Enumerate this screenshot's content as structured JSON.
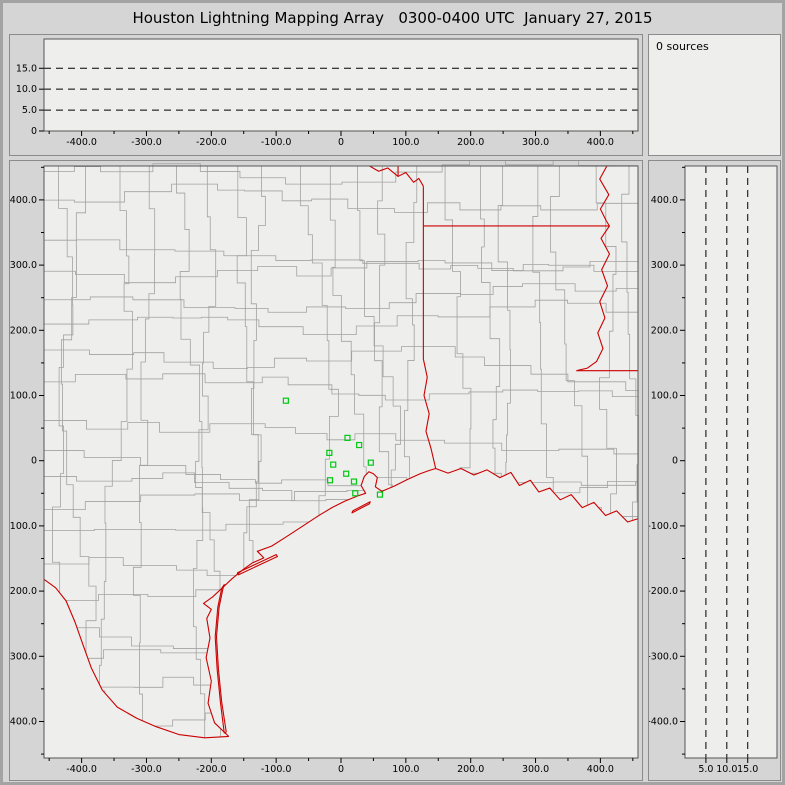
{
  "title": "Houston Lightning Mapping Array   0300-0400 UTC  January 27, 2015",
  "sources_label": "0 sources",
  "colors": {
    "background": "#d5d5d5",
    "plot_bg": "#eeeeec",
    "panel_border": "#8b8b8b",
    "frame": "#555555",
    "county": "#a2a2a2",
    "boundary": "#cb0000",
    "station": "#00c814",
    "gridline": "#000000"
  },
  "axes": {
    "ew": {
      "range": [
        -458,
        458
      ],
      "ticks": [
        -400,
        -300,
        -200,
        -100,
        0,
        100,
        200,
        300,
        400
      ],
      "labels": [
        "-400.0",
        "-300.0",
        "-200.0",
        "-100.0",
        "0",
        "100.0",
        "200.0",
        "300.0",
        "400.0"
      ]
    },
    "ns": {
      "range": [
        -456,
        452
      ],
      "ticks": [
        400,
        300,
        200,
        100,
        0,
        -100,
        -200,
        -300,
        -400
      ],
      "labels": [
        "400.0",
        "300.0",
        "200.0",
        "100.0",
        "0",
        "-100.0",
        "-200.0",
        "-300.0",
        "-400.0"
      ]
    },
    "alt_top": {
      "range": [
        0,
        22
      ],
      "ticks": [
        0,
        5,
        10,
        15
      ],
      "labels": [
        "0",
        "5.0",
        "10.0",
        "15.0"
      ],
      "gridlines": [
        5,
        10,
        15
      ]
    },
    "alt_right": {
      "range": [
        0,
        22
      ],
      "ticks": [
        5,
        10,
        15
      ],
      "labels": [
        "5.0",
        "10.0",
        "15.0"
      ],
      "gridlines": [
        5,
        10,
        15
      ]
    }
  },
  "map": {
    "stations_km": [
      [
        -85,
        92
      ],
      [
        10,
        35
      ],
      [
        28,
        24
      ],
      [
        -18,
        12
      ],
      [
        -12,
        -6
      ],
      [
        8,
        -20
      ],
      [
        -17,
        -30
      ],
      [
        20,
        -32
      ],
      [
        46,
        -3
      ],
      [
        22,
        -50
      ],
      [
        60,
        -52
      ]
    ],
    "boundaries_km": {
      "red_river": [
        [
          44,
          452
        ],
        [
          58,
          444
        ],
        [
          72,
          449
        ],
        [
          88,
          436
        ],
        [
          100,
          442
        ],
        [
          112,
          427
        ],
        [
          120,
          433
        ],
        [
          127,
          421
        ]
      ],
      "ok_ar": [
        [
          88,
          452
        ],
        [
          88,
          437
        ]
      ],
      "tx_ar": [
        [
          127,
          421
        ],
        [
          127,
          360
        ]
      ],
      "ar_la": [
        [
          127,
          360
        ],
        [
          414,
          360
        ]
      ],
      "tx_la_sabine": [
        [
          127,
          360
        ],
        [
          127,
          156
        ],
        [
          133,
          128
        ],
        [
          128,
          100
        ],
        [
          136,
          72
        ],
        [
          131,
          45
        ],
        [
          139,
          18
        ],
        [
          146,
          -12
        ]
      ],
      "mississippi": [
        [
          410,
          452
        ],
        [
          399,
          432
        ],
        [
          413,
          408
        ],
        [
          400,
          386
        ],
        [
          409,
          368
        ],
        [
          414,
          360
        ],
        [
          401,
          341
        ],
        [
          414,
          317
        ],
        [
          402,
          293
        ],
        [
          411,
          268
        ],
        [
          399,
          244
        ],
        [
          407,
          219
        ],
        [
          396,
          196
        ],
        [
          404,
          172
        ],
        [
          394,
          152
        ],
        [
          380,
          142
        ],
        [
          367,
          139
        ],
        [
          363,
          138
        ]
      ],
      "la_ms": [
        [
          363,
          138
        ],
        [
          458,
          138
        ]
      ],
      "gulf_coast": [
        [
          -173,
          -423
        ],
        [
          -195,
          -402
        ],
        [
          -205,
          -372
        ],
        [
          -200,
          -338
        ],
        [
          -208,
          -302
        ],
        [
          -202,
          -272
        ],
        [
          -207,
          -242
        ],
        [
          -200,
          -228
        ],
        [
          -212,
          -219
        ],
        [
          -198,
          -209
        ],
        [
          -184,
          -196
        ],
        [
          -168,
          -181
        ],
        [
          -151,
          -167
        ],
        [
          -137,
          -157
        ],
        [
          -119,
          -149
        ],
        [
          -129,
          -139
        ],
        [
          -107,
          -131
        ],
        [
          -91,
          -121
        ],
        [
          -74,
          -110
        ],
        [
          -54,
          -97
        ],
        [
          -34,
          -84
        ],
        [
          -14,
          -72
        ],
        [
          6,
          -62
        ],
        [
          26,
          -54
        ],
        [
          38,
          -50
        ],
        [
          31,
          -38
        ],
        [
          36,
          -24
        ],
        [
          43,
          -17
        ],
        [
          50,
          -20
        ],
        [
          56,
          -26
        ],
        [
          53,
          -40
        ],
        [
          63,
          -47
        ],
        [
          82,
          -39
        ],
        [
          102,
          -29
        ],
        [
          122,
          -20
        ],
        [
          136,
          -15
        ],
        [
          146,
          -12
        ],
        [
          165,
          -19
        ],
        [
          185,
          -12
        ],
        [
          205,
          -22
        ],
        [
          225,
          -14
        ],
        [
          245,
          -26
        ],
        [
          262,
          -18
        ],
        [
          275,
          -38
        ],
        [
          292,
          -30
        ],
        [
          305,
          -48
        ],
        [
          322,
          -42
        ],
        [
          338,
          -60
        ],
        [
          355,
          -52
        ],
        [
          372,
          -72
        ],
        [
          390,
          -64
        ],
        [
          408,
          -84
        ],
        [
          425,
          -77
        ],
        [
          442,
          -94
        ],
        [
          458,
          -89
        ]
      ],
      "rio_grande": [
        [
          -173,
          -423
        ],
        [
          -210,
          -425
        ],
        [
          -250,
          -420
        ],
        [
          -285,
          -408
        ],
        [
          -315,
          -395
        ],
        [
          -345,
          -378
        ],
        [
          -368,
          -352
        ],
        [
          -385,
          -318
        ],
        [
          -398,
          -282
        ],
        [
          -410,
          -248
        ],
        [
          -424,
          -215
        ],
        [
          -440,
          -195
        ],
        [
          -458,
          -182
        ]
      ],
      "padre_island": [
        [
          -180,
          -418
        ],
        [
          -186,
          -370
        ],
        [
          -191,
          -320
        ],
        [
          -194,
          -270
        ],
        [
          -190,
          -225
        ],
        [
          -184,
          -196
        ],
        [
          -180,
          -190
        ],
        [
          -182,
          -196
        ],
        [
          -188,
          -225
        ],
        [
          -192,
          -270
        ],
        [
          -189,
          -320
        ],
        [
          -184,
          -370
        ],
        [
          -177,
          -416
        ],
        [
          -180,
          -418
        ]
      ],
      "matagorda_island": [
        [
          -160,
          -172
        ],
        [
          -130,
          -158
        ],
        [
          -100,
          -144
        ],
        [
          -98,
          -147
        ],
        [
          -128,
          -161
        ],
        [
          -158,
          -175
        ],
        [
          -160,
          -172
        ]
      ],
      "galveston_island": [
        [
          18,
          -77
        ],
        [
          45,
          -63
        ],
        [
          44,
          -66
        ],
        [
          17,
          -80
        ],
        [
          18,
          -77
        ]
      ]
    }
  }
}
